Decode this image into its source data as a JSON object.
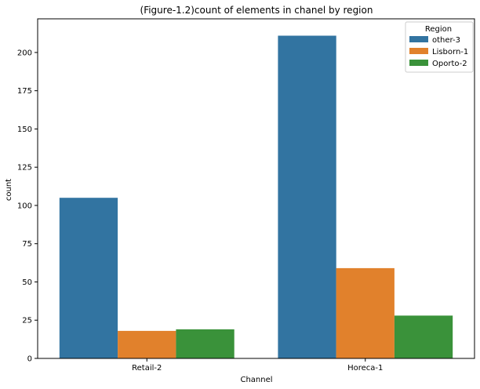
{
  "chart_data": {
    "type": "bar",
    "title": "(Figure-1.2)count of elements in chanel by region",
    "xlabel": "Channel",
    "ylabel": "count",
    "categories": [
      "Retail-2",
      "Horeca-1"
    ],
    "series": [
      {
        "name": "other-3",
        "values": [
          105,
          211
        ],
        "color": "#3274a1"
      },
      {
        "name": "Lisborn-1",
        "values": [
          18,
          59
        ],
        "color": "#e1812c"
      },
      {
        "name": "Oporto-2",
        "values": [
          19,
          28
        ],
        "color": "#3a923a"
      }
    ],
    "ylim": [
      0,
      222
    ],
    "yticks": [
      0,
      25,
      50,
      75,
      100,
      125,
      150,
      175,
      200,
      225
    ],
    "grid": false,
    "legend": {
      "title": "Region",
      "placement": "top-right"
    }
  }
}
